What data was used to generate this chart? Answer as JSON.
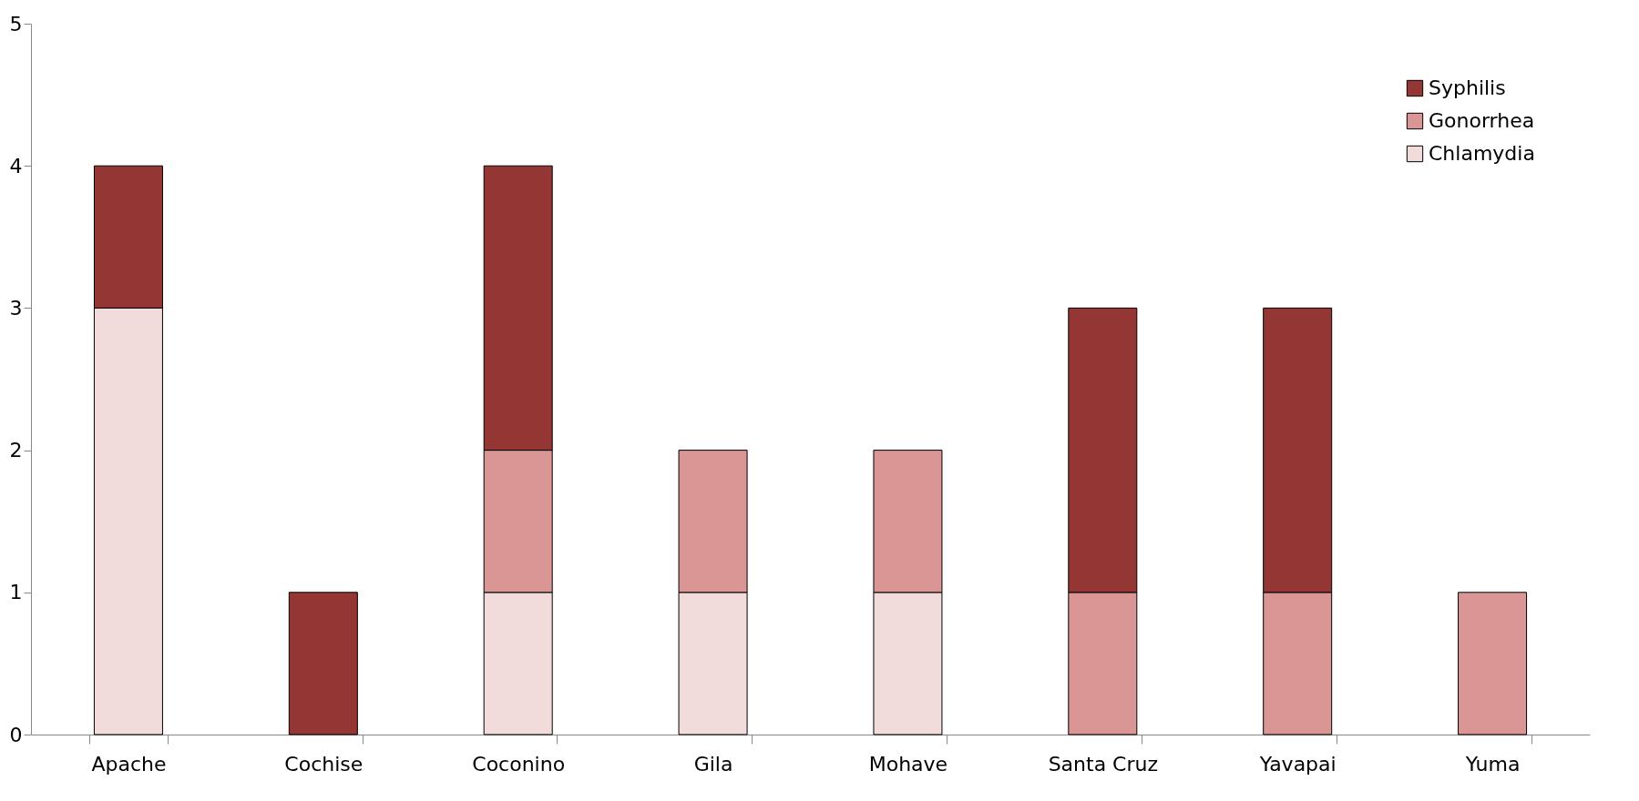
{
  "chart_data": {
    "type": "bar",
    "stacked": true,
    "categories": [
      "Apache",
      "Cochise",
      "Coconino",
      "Gila",
      "Mohave",
      "Santa Cruz",
      "Yavapai",
      "Yuma"
    ],
    "series": [
      {
        "name": "Chlamydia",
        "color": "#f2dcdb",
        "values": [
          3,
          null,
          1,
          1,
          1,
          null,
          null,
          null
        ]
      },
      {
        "name": "Gonorrhea",
        "color": "#d99694",
        "values": [
          null,
          null,
          1,
          1,
          1,
          1,
          1,
          1
        ]
      },
      {
        "name": "Syphilis",
        "color": "#943634",
        "values": [
          1,
          1,
          2,
          null,
          null,
          2,
          2,
          null
        ]
      }
    ],
    "ylim": [
      0,
      5
    ],
    "yticks": [
      0,
      1,
      2,
      3,
      4,
      5
    ],
    "grid": false,
    "legend": "top right"
  }
}
